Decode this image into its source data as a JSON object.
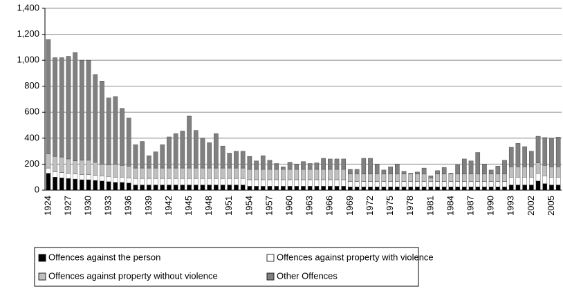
{
  "chart_data": {
    "type": "stacked-bar",
    "categories": [
      "1924",
      null,
      null,
      "1927",
      null,
      null,
      "1930",
      null,
      null,
      "1933",
      null,
      null,
      "1936",
      null,
      null,
      "1939",
      null,
      null,
      "1942",
      null,
      null,
      "1945",
      null,
      null,
      "1948",
      null,
      null,
      "1951",
      null,
      null,
      "1954",
      null,
      null,
      "1957",
      null,
      null,
      "1960",
      null,
      null,
      "1963",
      null,
      null,
      "1966",
      null,
      null,
      "1969",
      null,
      null,
      "1972",
      null,
      null,
      "1975",
      null,
      null,
      "1978",
      null,
      null,
      "1981",
      null,
      null,
      "1984",
      null,
      null,
      "1987",
      null,
      null,
      "1990",
      null,
      null,
      "1993",
      null,
      null,
      "2002",
      null,
      null,
      "2005",
      null
    ],
    "series": [
      {
        "name": "Offences against the person",
        "color": "#000000",
        "values": [
          130,
          100,
          95,
          90,
          85,
          80,
          80,
          75,
          70,
          65,
          60,
          60,
          55,
          40,
          40,
          40,
          40,
          40,
          40,
          40,
          40,
          40,
          40,
          40,
          40,
          40,
          40,
          40,
          40,
          40,
          30,
          30,
          30,
          30,
          30,
          30,
          30,
          30,
          30,
          30,
          30,
          30,
          30,
          30,
          30,
          25,
          25,
          25,
          25,
          25,
          25,
          25,
          25,
          25,
          25,
          25,
          25,
          25,
          25,
          25,
          25,
          25,
          25,
          25,
          25,
          25,
          25,
          25,
          25,
          40,
          40,
          40,
          40,
          70,
          50,
          40,
          40
        ]
      },
      {
        "name": "Offences against property with violence",
        "color": "#ffffff",
        "values": [
          40,
          40,
          40,
          40,
          40,
          40,
          40,
          40,
          40,
          40,
          40,
          40,
          40,
          50,
          50,
          50,
          50,
          50,
          50,
          50,
          50,
          50,
          50,
          50,
          50,
          50,
          50,
          50,
          50,
          50,
          50,
          50,
          50,
          50,
          50,
          50,
          50,
          50,
          50,
          50,
          50,
          50,
          50,
          50,
          50,
          40,
          40,
          40,
          40,
          40,
          40,
          40,
          40,
          40,
          40,
          40,
          40,
          40,
          40,
          40,
          40,
          40,
          40,
          40,
          40,
          40,
          40,
          40,
          40,
          60,
          60,
          60,
          60,
          60,
          60,
          60,
          60
        ]
      },
      {
        "name": "Offences against property without violence",
        "color": "#c0c0c0",
        "values": [
          110,
          120,
          120,
          110,
          100,
          110,
          110,
          100,
          90,
          90,
          100,
          90,
          90,
          80,
          80,
          80,
          80,
          80,
          80,
          80,
          80,
          80,
          80,
          80,
          80,
          80,
          80,
          80,
          80,
          80,
          80,
          80,
          80,
          80,
          80,
          80,
          80,
          80,
          80,
          80,
          80,
          80,
          80,
          80,
          80,
          60,
          60,
          60,
          60,
          60,
          60,
          60,
          60,
          60,
          60,
          60,
          60,
          30,
          60,
          60,
          60,
          60,
          60,
          60,
          60,
          60,
          60,
          60,
          60,
          80,
          80,
          80,
          80,
          80,
          80,
          80,
          80
        ]
      },
      {
        "name": "Other Offences",
        "color": "#808080",
        "values": [
          880,
          760,
          765,
          790,
          835,
          770,
          770,
          675,
          640,
          515,
          520,
          440,
          370,
          180,
          205,
          95,
          125,
          180,
          240,
          265,
          285,
          400,
          290,
          230,
          195,
          265,
          170,
          115,
          130,
          130,
          100,
          65,
          105,
          70,
          45,
          20,
          55,
          40,
          60,
          45,
          50,
          85,
          80,
          80,
          80,
          35,
          35,
          120,
          120,
          75,
          30,
          55,
          75,
          20,
          5,
          15,
          45,
          15,
          25,
          50,
          5,
          70,
          115,
          100,
          165,
          75,
          30,
          60,
          105,
          150,
          180,
          155,
          120,
          205,
          215,
          220,
          228
        ]
      }
    ],
    "ylim": [
      0,
      1400
    ],
    "yticks": [
      0,
      200,
      400,
      600,
      800,
      {
        "value": 1000,
        "label": "1,000"
      },
      {
        "value": 1200,
        "label": "1,200"
      },
      {
        "value": 1400,
        "label": "1,400"
      }
    ],
    "grid": true,
    "legend": "bottom"
  }
}
